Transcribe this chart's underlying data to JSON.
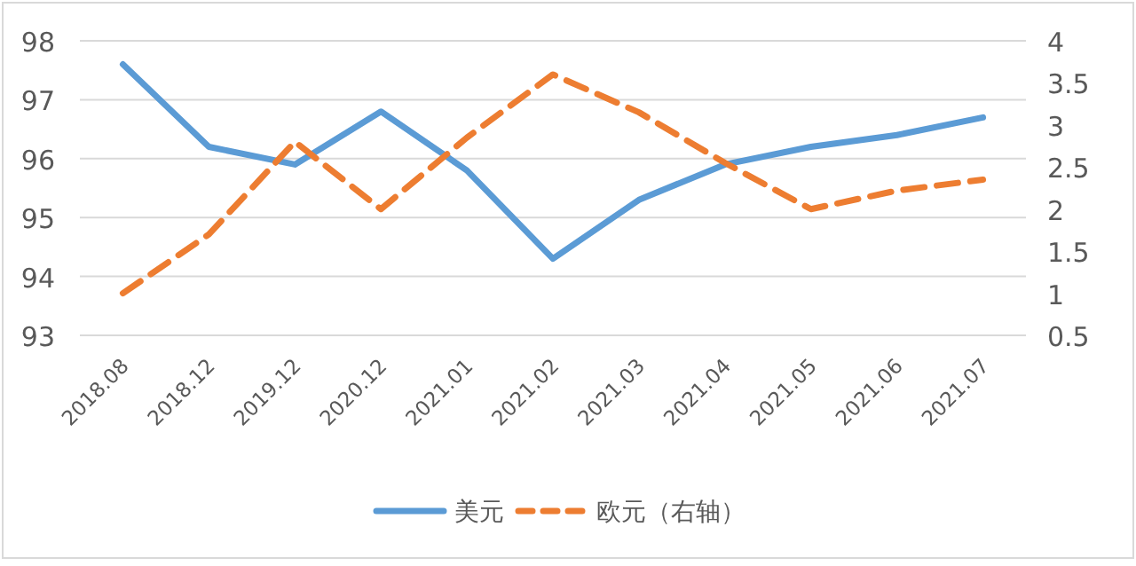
{
  "chart_data": {
    "type": "line",
    "categories": [
      "2018.08",
      "2018.12",
      "2019.12",
      "2020.12",
      "2021.01",
      "2021.02",
      "2021.03",
      "2021.04",
      "2021.05",
      "2021.06",
      "2021.07"
    ],
    "series": [
      {
        "name": "美元",
        "color": "#5b9bd5",
        "line_style": "solid",
        "values": [
          97.6,
          96.2,
          95.9,
          96.8,
          95.8,
          94.3,
          95.3,
          95.9,
          96.2,
          96.4,
          96.7
        ]
      },
      {
        "name": "欧元（右轴）",
        "color": "#ed7d31",
        "line_style": "dashed",
        "axis": "y2",
        "values": [
          1.0,
          1.7,
          2.8,
          2.0,
          2.85,
          3.6,
          3.15,
          2.55,
          2.0,
          2.22,
          2.35
        ]
      }
    ],
    "ylim": [
      93,
      98
    ],
    "yticks": [
      93,
      94,
      95,
      96,
      97,
      98
    ],
    "y2lim": [
      0.5,
      4
    ],
    "y2ticks": [
      {
        "value": 0.5,
        "label": "0.5"
      },
      1,
      {
        "value": 1.5,
        "label": "1.5"
      },
      2,
      {
        "value": 2.5,
        "label": "2.5"
      },
      3,
      {
        "value": 3.5,
        "label": "3.5"
      },
      4
    ],
    "grid": "y",
    "legend": "bottom",
    "marker": "none"
  }
}
